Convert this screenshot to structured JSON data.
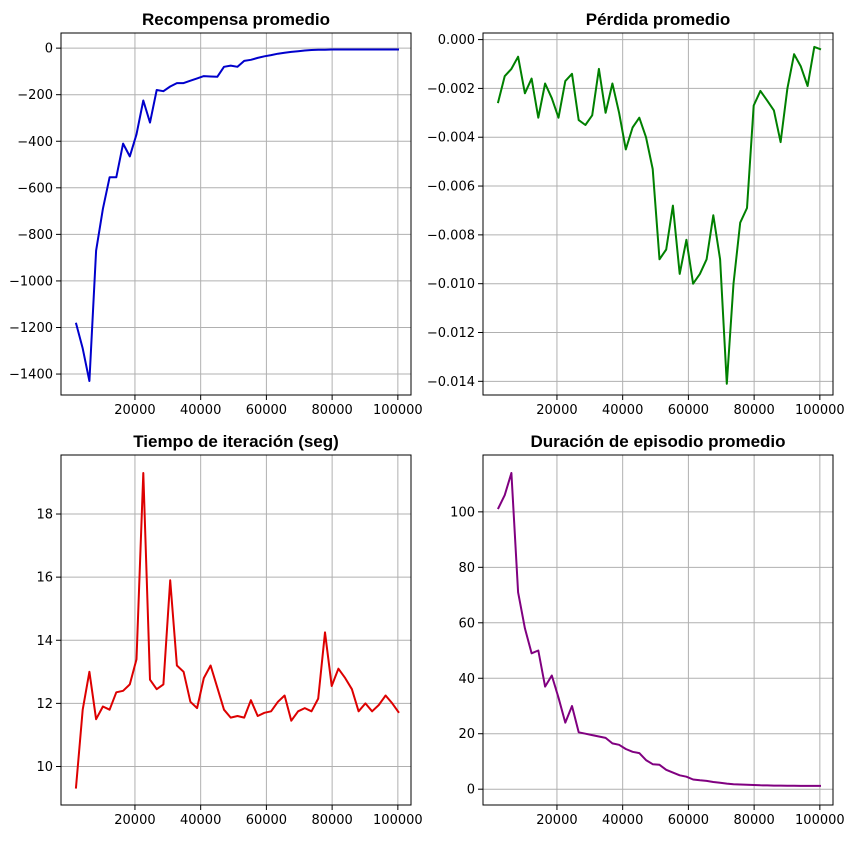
{
  "chart_data": [
    {
      "type": "line",
      "title": "Recompensa promedio",
      "xlabel": "",
      "ylabel": "",
      "xlim": [
        -2500,
        104000
      ],
      "ylim": [
        -1490,
        65
      ],
      "xticks": [
        20000,
        40000,
        60000,
        80000,
        100000
      ],
      "yticks": [
        0,
        -200,
        -400,
        -600,
        -800,
        -1000,
        -1200,
        -1400
      ],
      "grid": true,
      "color": "#0000cc",
      "x": [
        2048,
        4096,
        6144,
        8192,
        10240,
        12288,
        14336,
        16384,
        18432,
        20480,
        22528,
        24576,
        26624,
        28672,
        30720,
        32768,
        34816,
        36864,
        38912,
        40960,
        43008,
        45056,
        47104,
        49152,
        51200,
        53248,
        55296,
        57344,
        59392,
        61440,
        63488,
        65536,
        67584,
        69632,
        71680,
        73728,
        75776,
        77824,
        79872,
        81920,
        83968,
        86016,
        88064,
        90112,
        92160,
        94208,
        96256,
        98304,
        100352
      ],
      "y": [
        -1180,
        -1290,
        -1430,
        -870,
        -690,
        -555,
        -555,
        -410,
        -465,
        -370,
        -225,
        -320,
        -180,
        -185,
        -165,
        -150,
        -150,
        -140,
        -130,
        -120,
        -122,
        -123,
        -80,
        -75,
        -80,
        -55,
        -50,
        -42,
        -35,
        -30,
        -24,
        -20,
        -16,
        -13,
        -10,
        -8,
        -7,
        -7,
        -6,
        -6,
        -6,
        -6,
        -6,
        -6,
        -6,
        -6,
        -6,
        -6,
        -6
      ]
    },
    {
      "type": "line",
      "title": "Pérdida promedio",
      "xlabel": "",
      "ylabel": "",
      "xlim": [
        -2500,
        104000
      ],
      "ylim": [
        -0.01456,
        0.00027
      ],
      "xticks": [
        20000,
        40000,
        60000,
        80000,
        100000
      ],
      "yticks": [
        0.0,
        -0.002,
        -0.004,
        -0.006,
        -0.008,
        -0.01,
        -0.012,
        -0.014
      ],
      "ytick_labels": [
        "0.000",
        "−0.002",
        "−0.004",
        "−0.006",
        "−0.008",
        "−0.010",
        "−0.012",
        "−0.014"
      ],
      "grid": true,
      "color": "#008000",
      "x": [
        2048,
        4096,
        6144,
        8192,
        10240,
        12288,
        14336,
        16384,
        18432,
        20480,
        22528,
        24576,
        26624,
        28672,
        30720,
        32768,
        34816,
        36864,
        38912,
        40960,
        43008,
        45056,
        47104,
        49152,
        51200,
        53248,
        55296,
        57344,
        59392,
        61440,
        63488,
        65536,
        67584,
        69632,
        71680,
        73728,
        75776,
        77824,
        79872,
        81920,
        83968,
        86016,
        88064,
        90112,
        92160,
        94208,
        96256,
        98304,
        100352
      ],
      "y": [
        -0.0026,
        -0.0015,
        -0.0012,
        -0.0007,
        -0.0022,
        -0.0016,
        -0.0032,
        -0.0018,
        -0.0024,
        -0.0032,
        -0.0017,
        -0.0014,
        -0.0033,
        -0.0035,
        -0.0031,
        -0.0012,
        -0.003,
        -0.0018,
        -0.003,
        -0.0045,
        -0.0036,
        -0.0032,
        -0.004,
        -0.0053,
        -0.009,
        -0.0086,
        -0.0068,
        -0.0096,
        -0.0082,
        -0.01,
        -0.0096,
        -0.009,
        -0.0072,
        -0.009,
        -0.0141,
        -0.01,
        -0.0075,
        -0.0069,
        -0.0027,
        -0.0021,
        -0.0025,
        -0.0029,
        -0.0042,
        -0.002,
        -0.0006,
        -0.0011,
        -0.0019,
        -0.0003,
        -0.0004
      ]
    },
    {
      "type": "line",
      "title": "Tiempo de iteración (seg)",
      "xlabel": "",
      "ylabel": "",
      "xlim": [
        -2500,
        104000
      ],
      "ylim": [
        8.78,
        19.87
      ],
      "xticks": [
        20000,
        40000,
        60000,
        80000,
        100000
      ],
      "yticks": [
        10,
        12,
        14,
        16,
        18
      ],
      "grid": true,
      "color": "#dd0000",
      "x": [
        2048,
        4096,
        6144,
        8192,
        10240,
        12288,
        14336,
        16384,
        18432,
        20480,
        22528,
        24576,
        26624,
        28672,
        30720,
        32768,
        34816,
        36864,
        38912,
        40960,
        43008,
        45056,
        47104,
        49152,
        51200,
        53248,
        55296,
        57344,
        59392,
        61440,
        63488,
        65536,
        67584,
        69632,
        71680,
        73728,
        75776,
        77824,
        79872,
        81920,
        83968,
        86016,
        88064,
        90112,
        92160,
        94208,
        96256,
        98304,
        100352
      ],
      "y": [
        9.3,
        11.8,
        13.0,
        11.5,
        11.9,
        11.8,
        12.35,
        12.4,
        12.6,
        13.4,
        19.3,
        12.75,
        12.45,
        12.6,
        15.9,
        13.2,
        13.0,
        12.05,
        11.85,
        12.8,
        13.2,
        12.5,
        11.8,
        11.55,
        11.6,
        11.55,
        12.1,
        11.6,
        11.7,
        11.75,
        12.05,
        12.25,
        11.45,
        11.75,
        11.85,
        11.75,
        12.15,
        14.25,
        12.55,
        13.1,
        12.8,
        12.45,
        11.75,
        12.0,
        11.75,
        11.95,
        12.25,
        12.0,
        11.7
      ]
    },
    {
      "type": "line",
      "title": "Duración de episodio promedio",
      "xlabel": "",
      "ylabel": "",
      "xlim": [
        -2500,
        104000
      ],
      "ylim": [
        -5.7,
        120.5
      ],
      "xticks": [
        20000,
        40000,
        60000,
        80000,
        100000
      ],
      "yticks": [
        0,
        20,
        40,
        60,
        80,
        100
      ],
      "grid": true,
      "color": "#800080",
      "x": [
        2048,
        4096,
        6144,
        8192,
        10240,
        12288,
        14336,
        16384,
        18432,
        20480,
        22528,
        24576,
        26624,
        28672,
        30720,
        32768,
        34816,
        36864,
        38912,
        40960,
        43008,
        45056,
        47104,
        49152,
        51200,
        53248,
        55296,
        57344,
        59392,
        61440,
        63488,
        65536,
        67584,
        69632,
        71680,
        73728,
        75776,
        77824,
        79872,
        81920,
        83968,
        86016,
        88064,
        90112,
        92160,
        94208,
        96256,
        98304,
        100352
      ],
      "y": [
        101,
        106,
        114,
        71,
        58,
        49,
        50,
        37,
        41,
        33,
        24,
        30,
        20.5,
        20,
        19.5,
        19,
        18.5,
        16.5,
        16,
        14.5,
        13.5,
        13,
        10.5,
        9,
        8.8,
        7,
        6,
        5,
        4.5,
        3.5,
        3.2,
        3,
        2.6,
        2.3,
        2,
        1.8,
        1.7,
        1.6,
        1.5,
        1.4,
        1.35,
        1.3,
        1.3,
        1.25,
        1.25,
        1.2,
        1.2,
        1.2,
        1.2
      ]
    }
  ]
}
